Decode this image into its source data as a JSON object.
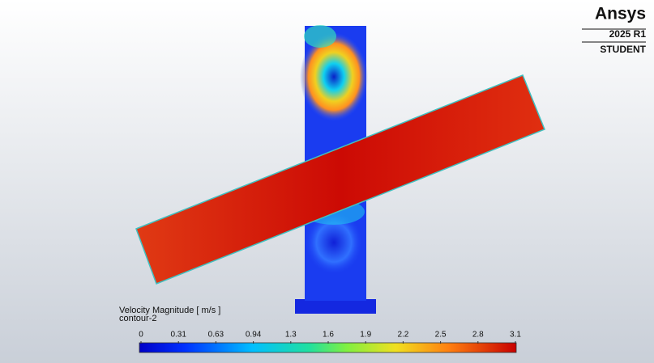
{
  "logo": {
    "brand": "Ansys",
    "version": "2025 R1",
    "edition": "STUDENT"
  },
  "legend": {
    "title": "Velocity Magnitude [ m/s ]",
    "subtitle": "contour-2",
    "ticks": [
      "0",
      "0.31",
      "0.63",
      "0.94",
      "1.3",
      "1.6",
      "1.9",
      "2.2",
      "2.5",
      "2.8",
      "3.1"
    ]
  }
}
